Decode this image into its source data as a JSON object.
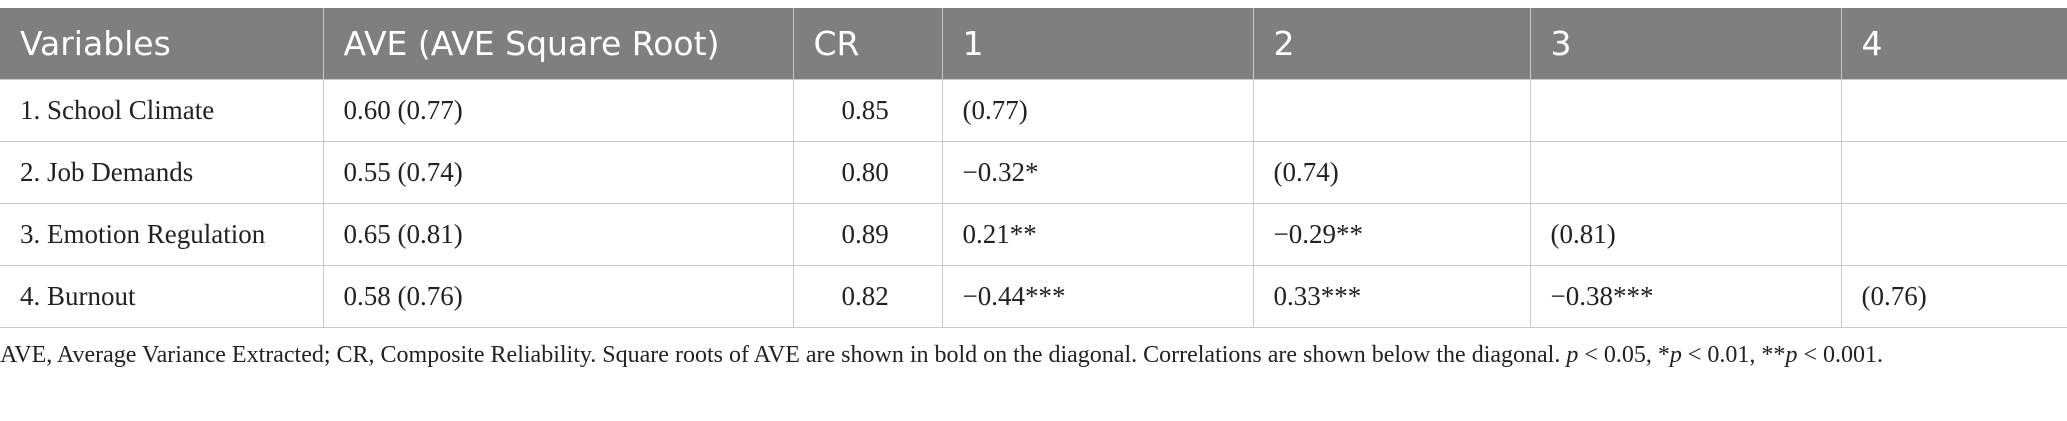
{
  "table": {
    "header": [
      "Variables",
      "AVE (AVE Square Root)",
      "CR",
      "1",
      "2",
      "3",
      "4"
    ],
    "rows": [
      [
        "1. School Climate",
        "0.60 (0.77)",
        "0.85",
        "(0.77)",
        null,
        null,
        null
      ],
      [
        "2. Job Demands",
        "0.55 (0.74)",
        "0.80",
        "−0.32*",
        "(0.74)",
        null,
        null
      ],
      [
        "3. Emotion Regulation",
        "0.65 (0.81)",
        "0.89",
        "0.21**",
        "−0.29**",
        "(0.81)",
        null
      ],
      [
        "4. Burnout",
        "0.58 (0.76)",
        "0.82",
        "−0.44***",
        "0.33***",
        "−0.38***",
        "(0.76)"
      ]
    ]
  },
  "footnote": [
    "AVE, Average Variance Extracted; CR, Composite Reliability. Square roots of AVE are shown in bold on the diagonal. Correlations are shown below the diagonal. ",
    "p",
    " < 0.05, *",
    "p",
    " < 0.01, **",
    "p",
    " < 0.001."
  ]
}
